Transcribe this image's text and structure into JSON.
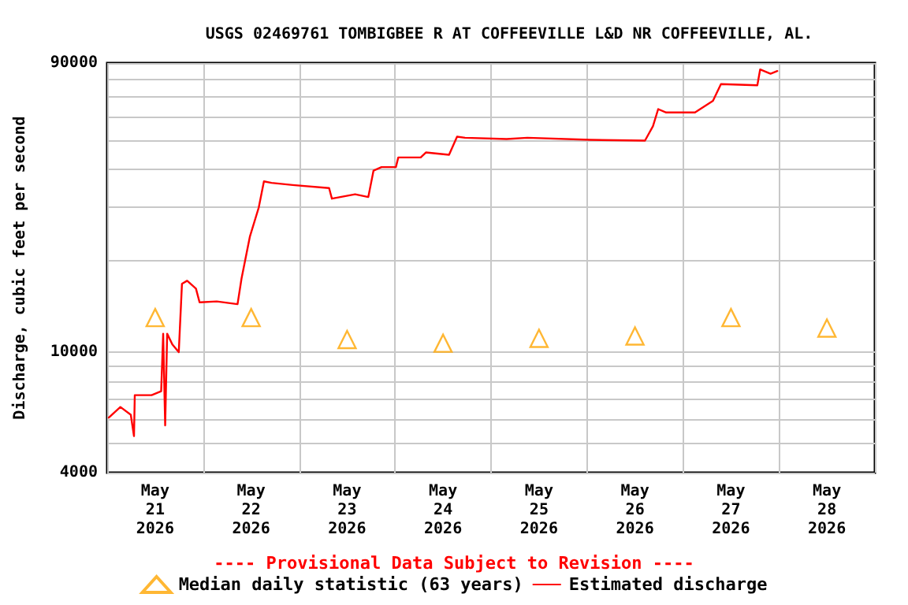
{
  "chart_data": {
    "type": "line",
    "title": "USGS 02469761 TOMBIGBEE R AT COFFEEVILLE L&D NR COFFEEVILLE, AL.",
    "ylabel": "Discharge, cubic feet per second",
    "annotations": [
      "---- Provisional Data Subject to Revision ----"
    ],
    "xlim": [
      "2026-05-21T00:00",
      "2026-05-29T00:00"
    ],
    "xticks": [
      {
        "value": "2026-05-21T00:00",
        "label": null
      },
      {
        "value": "2026-05-21T12:00",
        "label": "May\n21\n2026"
      },
      {
        "value": "2026-05-22T00:00",
        "label": null
      },
      {
        "value": "2026-05-22T12:00",
        "label": "May\n22\n2026"
      },
      {
        "value": "2026-05-23T00:00",
        "label": null
      },
      {
        "value": "2026-05-23T12:00",
        "label": "May\n23\n2026"
      },
      {
        "value": "2026-05-24T00:00",
        "label": null
      },
      {
        "value": "2026-05-24T12:00",
        "label": "May\n24\n2026"
      },
      {
        "value": "2026-05-25T00:00",
        "label": null
      },
      {
        "value": "2026-05-25T12:00",
        "label": "May\n25\n2026"
      },
      {
        "value": "2026-05-26T00:00",
        "label": null
      },
      {
        "value": "2026-05-26T12:00",
        "label": "May\n26\n2026"
      },
      {
        "value": "2026-05-27T00:00",
        "label": null
      },
      {
        "value": "2026-05-27T12:00",
        "label": "May\n27\n2026"
      },
      {
        "value": "2026-05-28T00:00",
        "label": null
      },
      {
        "value": "2026-05-28T12:00",
        "label": "May\n28\n2026"
      },
      {
        "value": "2026-05-29T00:00",
        "label": null
      }
    ],
    "ylim": [
      4000,
      90000
    ],
    "yticks": [
      4000,
      {
        "value": 5000,
        "label": null
      },
      {
        "value": 6000,
        "label": null
      },
      {
        "value": 7000,
        "label": null
      },
      {
        "value": 8000,
        "label": null
      },
      {
        "value": 9000,
        "label": null
      },
      10000,
      {
        "value": 20000,
        "label": null
      },
      {
        "value": 30000,
        "label": null
      },
      {
        "value": 40000,
        "label": null
      },
      {
        "value": 50000,
        "label": null
      },
      {
        "value": 60000,
        "label": null
      },
      {
        "value": 70000,
        "label": null
      },
      {
        "value": 80000,
        "label": null
      },
      90000
    ],
    "log": "y",
    "grid": true,
    "legend": "bottom",
    "series": [
      {
        "name": "Median daily statistic (63 years)",
        "type": "scatter",
        "marker": "triangle",
        "color": "#ffa500",
        "x": [
          "2026-05-21T12:00",
          "2026-05-22T12:00",
          "2026-05-23T12:00",
          "2026-05-24T12:00",
          "2026-05-25T12:00",
          "2026-05-26T12:00",
          "2026-05-27T12:00",
          "2026-05-28T12:00"
        ],
        "values": [
          13000,
          13000,
          11000,
          10700,
          11100,
          11300,
          13000,
          12000
        ]
      },
      {
        "name": "Estimated discharge",
        "marker": "none",
        "color": "#ff0000",
        "x": [
          "2026-05-21T00:24",
          "2026-05-21T03:18",
          "2026-05-21T05:54",
          "2026-05-21T06:42",
          "2026-05-21T06:54",
          "2026-05-21T11:06",
          "2026-05-21T13:30",
          "2026-05-21T14:00",
          "2026-05-21T14:30",
          "2026-05-21T15:00",
          "2026-05-21T16:18",
          "2026-05-21T17:54",
          "2026-05-21T18:42",
          "2026-05-21T20:00",
          "2026-05-21T22:12",
          "2026-05-21T23:06",
          "2026-05-22T03:24",
          "2026-05-22T08:36",
          "2026-05-22T09:36",
          "2026-05-22T11:42",
          "2026-05-22T13:54",
          "2026-05-22T15:12",
          "2026-05-22T17:06",
          "2026-05-22T22:24",
          "2026-05-23T07:30",
          "2026-05-23T08:12",
          "2026-05-23T14:00",
          "2026-05-23T17:18",
          "2026-05-23T18:36",
          "2026-05-23T20:36",
          "2026-05-24T00:12",
          "2026-05-24T00:48",
          "2026-05-24T06:24",
          "2026-05-24T07:42",
          "2026-05-24T13:30",
          "2026-05-24T15:30",
          "2026-05-24T17:30",
          "2026-05-25T03:54",
          "2026-05-25T09:06",
          "2026-05-26T00:48",
          "2026-05-26T14:30",
          "2026-05-26T16:30",
          "2026-05-26T17:48",
          "2026-05-26T19:48",
          "2026-05-27T03:00",
          "2026-05-27T07:30",
          "2026-05-27T09:30",
          "2026-05-27T18:36",
          "2026-05-27T19:18",
          "2026-05-27T21:54",
          "2026-05-27T23:36"
        ],
        "values": [
          6080,
          6590,
          6210,
          5280,
          7210,
          7210,
          7430,
          11500,
          5730,
          11500,
          10600,
          10000,
          16800,
          17200,
          16200,
          14600,
          14700,
          14400,
          17500,
          24100,
          30000,
          36600,
          36200,
          35600,
          34800,
          32100,
          33200,
          32500,
          39700,
          40800,
          40800,
          43900,
          43900,
          45600,
          44800,
          51400,
          51000,
          50500,
          51000,
          50200,
          49900,
          55700,
          63400,
          61800,
          61800,
          67500,
          76700,
          76000,
          85700,
          83000,
          84700
        ]
      }
    ]
  }
}
